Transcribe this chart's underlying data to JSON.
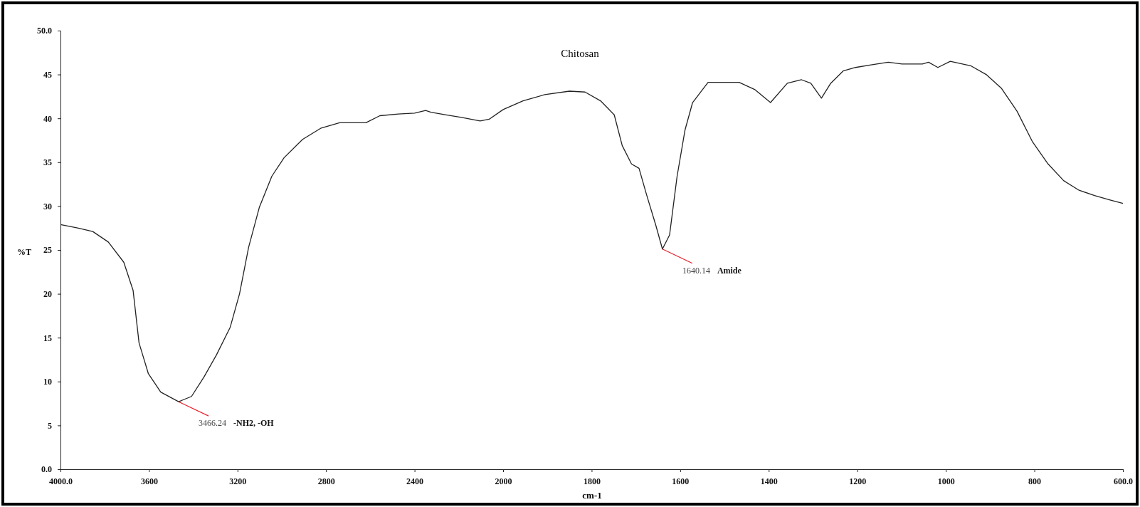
{
  "chart_data": [
    {
      "type": "line",
      "ylabel": "%T",
      "xlim": [
        4000,
        2000
      ],
      "xticks": [
        {
          "value": 4000,
          "label": "4000.0"
        },
        3600,
        3200,
        2800,
        2400,
        2000
      ],
      "ylim": [
        0,
        50
      ],
      "yticks": [
        {
          "value": 0,
          "label": "0.0"
        },
        5,
        10,
        15,
        20,
        25,
        30,
        35,
        40,
        45,
        {
          "value": 50,
          "label": "50.0"
        }
      ],
      "grid": false,
      "marker": "none",
      "line_style": "solid",
      "series": [
        {
          "color": "#222222",
          "x": [
            4000,
            3923,
            3854,
            3784,
            3714,
            3672,
            3645,
            3603,
            3547,
            3466.24,
            3408,
            3352,
            3296,
            3233,
            3191,
            3150,
            3101,
            3045,
            2990,
            2906,
            2822,
            2739,
            2620,
            2557,
            2474,
            2400,
            2350,
            2326,
            2257,
            2188,
            2104,
            2063,
            2000
          ],
          "values": [
            27.9,
            27.5,
            27.1,
            25.9,
            23.6,
            20.4,
            14.4,
            10.9,
            8.8,
            7.7,
            8.3,
            10.5,
            13,
            16.2,
            20,
            25.3,
            29.9,
            33.4,
            35.5,
            37.6,
            38.9,
            39.5,
            39.5,
            40.3,
            40.5,
            40.6,
            40.9,
            40.7,
            40.4,
            40.1,
            39.7,
            39.9,
            41
          ]
        }
      ],
      "annotations": [
        {
          "text": "3466.24",
          "x": 3466.24,
          "y": 7.7
        },
        "-NH2, -OH"
      ]
    },
    {
      "type": "line",
      "title": "Chitosan",
      "xlabel": "cm-1",
      "xlim": [
        2000,
        600
      ],
      "xticks": [
        1800,
        1600,
        1400,
        1200,
        1000,
        800,
        {
          "value": 600,
          "label": "600.0"
        }
      ],
      "ylim": [
        0,
        50
      ],
      "tick_labels": "x",
      "grid": false,
      "marker": "none",
      "line_style": "solid",
      "series": [
        {
          "color": "#222222",
          "x": [
            2000,
            1955,
            1906,
            1850,
            1815,
            1780,
            1749,
            1731,
            1710,
            1693,
            1676,
            1655,
            1640.14,
            1624,
            1607,
            1589,
            1572,
            1537,
            1502,
            1467,
            1432,
            1396,
            1358,
            1326,
            1305,
            1281,
            1260,
            1232,
            1204,
            1169,
            1130,
            1099,
            1053,
            1039,
            1018,
            990,
            944,
            909,
            874,
            839,
            804,
            769,
            734,
            699,
            664,
            629,
            600
          ],
          "values": [
            41,
            42,
            42.7,
            43.1,
            43,
            42,
            40.4,
            36.9,
            34.8,
            34.3,
            31.3,
            27.8,
            25.1,
            26.7,
            33.4,
            38.7,
            41.8,
            44.1,
            44.1,
            44.1,
            43.3,
            41.8,
            44,
            44.4,
            44,
            42.3,
            44,
            45.4,
            45.8,
            46.1,
            46.4,
            46.2,
            46.2,
            46.4,
            45.8,
            46.5,
            46,
            45,
            43.4,
            40.8,
            37.3,
            34.8,
            32.9,
            31.8,
            31.2,
            30.7,
            30.3
          ]
        }
      ],
      "annotations": [
        {
          "text": "1640.14",
          "x": 1640.14,
          "y": 25.1
        },
        "Amide"
      ]
    }
  ]
}
